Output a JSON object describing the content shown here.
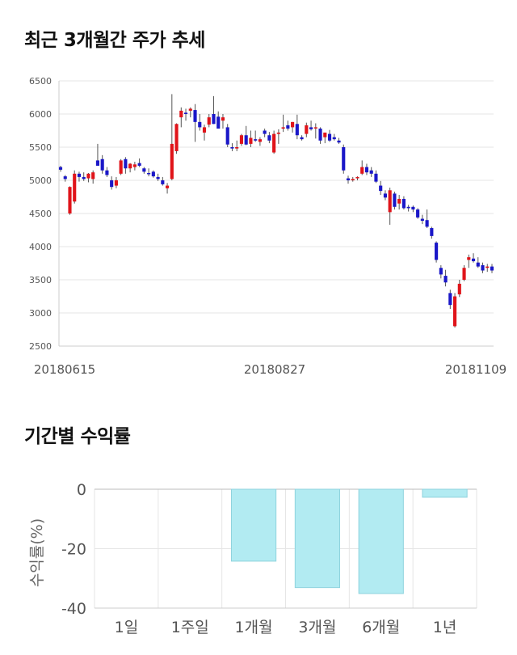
{
  "sections": {
    "price_title": "최근 3개월간 주가 추세",
    "return_title": "기간별 수익률"
  },
  "colors": {
    "up": "#e0141a",
    "down": "#1a17c8",
    "bar_fill": "#b2ebf2",
    "bar_stroke": "#8fd3de",
    "grid": "#e6e6e6"
  },
  "chart_data": [
    {
      "type": "candlestick",
      "title": "최근 3개월간 주가 추세",
      "y_ticks": [
        "6500",
        "6000",
        "5500",
        "5000",
        "4500",
        "4000",
        "3500",
        "3000",
        "2500"
      ],
      "x_tick_labels": [
        "20180615",
        "20180827",
        "20181109"
      ],
      "ylim": [
        2500,
        6500
      ],
      "grid": true,
      "candles": [
        [
          5200,
          5220,
          5130,
          5160
        ],
        [
          5060,
          5080,
          4980,
          5020
        ],
        [
          4500,
          4910,
          4480,
          4900
        ],
        [
          4680,
          5150,
          4650,
          5100
        ],
        [
          5100,
          5130,
          4980,
          5050
        ],
        [
          5050,
          5120,
          4990,
          5020
        ],
        [
          5030,
          5110,
          4970,
          5100
        ],
        [
          5020,
          5150,
          4950,
          5120
        ],
        [
          5300,
          5550,
          5250,
          5220
        ],
        [
          5320,
          5380,
          5100,
          5150
        ],
        [
          5150,
          5200,
          5050,
          5080
        ],
        [
          5000,
          5060,
          4860,
          4900
        ],
        [
          4920,
          5050,
          4880,
          5000
        ],
        [
          5100,
          5320,
          5080,
          5300
        ],
        [
          5320,
          5350,
          5100,
          5180
        ],
        [
          5180,
          5260,
          5120,
          5250
        ],
        [
          5200,
          5280,
          5150,
          5240
        ],
        [
          5260,
          5330,
          5200,
          5220
        ],
        [
          5180,
          5200,
          5100,
          5130
        ],
        [
          5110,
          5180,
          5060,
          5100
        ],
        [
          5130,
          5150,
          5040,
          5060
        ],
        [
          5050,
          5100,
          4990,
          5020
        ],
        [
          5000,
          5050,
          4920,
          4940
        ],
        [
          4880,
          4960,
          4800,
          4920
        ],
        [
          5020,
          6300,
          5000,
          5550
        ],
        [
          5440,
          5860,
          5400,
          5850
        ],
        [
          5950,
          6100,
          5800,
          6050
        ],
        [
          6020,
          6080,
          5900,
          6000
        ],
        [
          6050,
          6100,
          5950,
          6080
        ],
        [
          6060,
          6150,
          5580,
          5880
        ],
        [
          5880,
          6000,
          5750,
          5800
        ],
        [
          5720,
          5840,
          5600,
          5800
        ],
        [
          5840,
          6000,
          5800,
          5950
        ],
        [
          6000,
          6270,
          5850,
          5850
        ],
        [
          5960,
          6040,
          5800,
          5780
        ],
        [
          5900,
          6000,
          5780,
          5950
        ],
        [
          5800,
          5850,
          5500,
          5540
        ],
        [
          5500,
          5560,
          5440,
          5480
        ],
        [
          5480,
          5600,
          5440,
          5500
        ],
        [
          5550,
          5700,
          5520,
          5680
        ],
        [
          5680,
          5820,
          5530,
          5540
        ],
        [
          5550,
          5750,
          5500,
          5640
        ],
        [
          5620,
          5750,
          5580,
          5600
        ],
        [
          5580,
          5650,
          5520,
          5620
        ],
        [
          5750,
          5780,
          5650,
          5700
        ],
        [
          5680,
          5730,
          5560,
          5600
        ],
        [
          5420,
          5750,
          5400,
          5700
        ],
        [
          5700,
          5770,
          5550,
          5720
        ],
        [
          5780,
          5990,
          5730,
          5800
        ],
        [
          5830,
          5900,
          5750,
          5780
        ],
        [
          5800,
          5880,
          5720,
          5880
        ],
        [
          5850,
          5990,
          5620,
          5680
        ],
        [
          5650,
          5680,
          5600,
          5620
        ],
        [
          5700,
          5870,
          5650,
          5830
        ],
        [
          5800,
          5900,
          5750,
          5770
        ],
        [
          5800,
          5860,
          5630,
          5800
        ],
        [
          5780,
          5800,
          5550,
          5600
        ],
        [
          5650,
          5720,
          5560,
          5720
        ],
        [
          5700,
          5760,
          5580,
          5600
        ],
        [
          5650,
          5700,
          5600,
          5620
        ],
        [
          5600,
          5640,
          5550,
          5570
        ],
        [
          5500,
          5540,
          5100,
          5150
        ],
        [
          5030,
          5070,
          4950,
          5000
        ],
        [
          5000,
          5050,
          4980,
          5020
        ],
        [
          5030,
          5060,
          5000,
          5050
        ],
        [
          5100,
          5300,
          5080,
          5200
        ],
        [
          5200,
          5250,
          5080,
          5120
        ],
        [
          5150,
          5200,
          5050,
          5100
        ],
        [
          5100,
          5150,
          4960,
          4980
        ],
        [
          4920,
          4990,
          4780,
          4840
        ],
        [
          4800,
          4850,
          4700,
          4740
        ],
        [
          4520,
          4890,
          4330,
          4850
        ],
        [
          4800,
          4830,
          4560,
          4600
        ],
        [
          4650,
          4780,
          4560,
          4720
        ],
        [
          4720,
          4760,
          4560,
          4580
        ],
        [
          4600,
          4630,
          4530,
          4580
        ],
        [
          4600,
          4620,
          4520,
          4560
        ],
        [
          4560,
          4580,
          4420,
          4440
        ],
        [
          4420,
          4480,
          4340,
          4390
        ],
        [
          4400,
          4560,
          4280,
          4300
        ],
        [
          4280,
          4300,
          4120,
          4160
        ],
        [
          4060,
          4080,
          3760,
          3800
        ],
        [
          3680,
          3720,
          3520,
          3580
        ],
        [
          3560,
          3650,
          3400,
          3460
        ],
        [
          3300,
          3350,
          3060,
          3120
        ],
        [
          2800,
          3300,
          2780,
          3250
        ],
        [
          3280,
          3500,
          3240,
          3440
        ],
        [
          3500,
          3720,
          3480,
          3680
        ],
        [
          3800,
          3880,
          3680,
          3840
        ],
        [
          3820,
          3900,
          3760,
          3780
        ],
        [
          3760,
          3840,
          3680,
          3700
        ],
        [
          3720,
          3760,
          3600,
          3640
        ],
        [
          3680,
          3740,
          3620,
          3700
        ],
        [
          3700,
          3740,
          3600,
          3640
        ]
      ]
    },
    {
      "type": "bar",
      "title": "기간별 수익률",
      "ylabel": "수익률(%)",
      "categories": [
        "1일",
        "1주일",
        "1개월",
        "3개월",
        "6개월",
        "1년"
      ],
      "values": [
        0,
        0,
        -24.2,
        -33.1,
        -35.1,
        -2.7
      ],
      "y_ticks": [
        "0",
        "-20",
        "-40"
      ],
      "ylim": [
        -40,
        0
      ],
      "grid": true
    }
  ]
}
